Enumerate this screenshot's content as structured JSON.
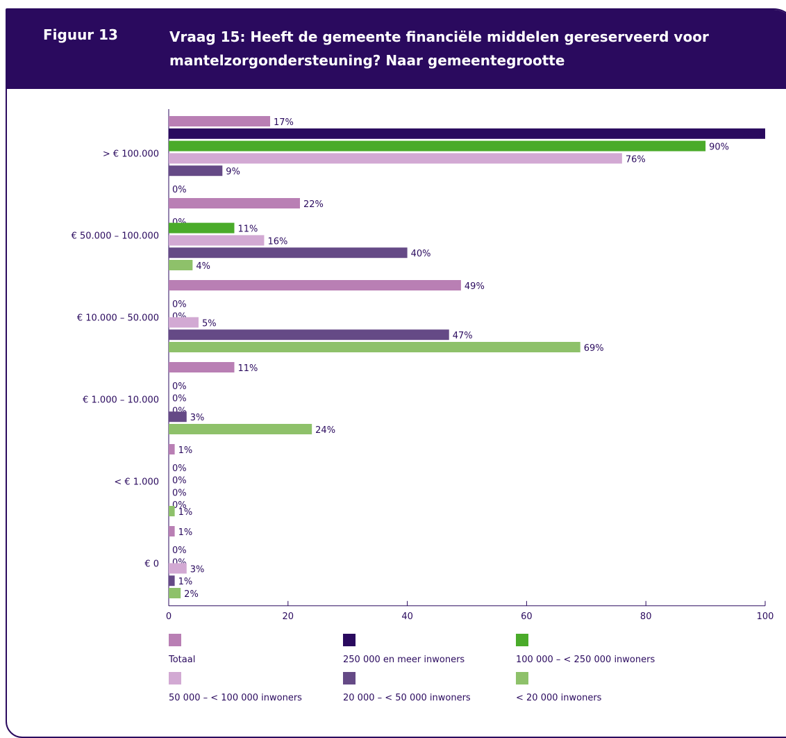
{
  "figure": {
    "label": "Figuur 13",
    "title": "Vraag 15: Heeft de gemeente financiële middelen gereserveerd voor mantelzorgondersteuning? Naar gemeentegrootte"
  },
  "chart_data": {
    "type": "bar",
    "orientation": "horizontal",
    "categories": [
      "> € 100.000",
      "€ 50.000 – 100.000",
      "€ 10.000 – 50.000",
      "€ 1.000 – 10.000",
      "< € 1.000",
      "€ 0"
    ],
    "series": [
      {
        "name": "Totaal",
        "color": "#b97fb4",
        "values": [
          17,
          22,
          49,
          11,
          1,
          1
        ]
      },
      {
        "name": "250 000 en meer inwoners",
        "color": "#2a0a5e",
        "values": [
          100,
          0,
          0,
          0,
          0,
          0
        ]
      },
      {
        "name": "100 000 – < 250 000 inwoners",
        "color": "#4aab2a",
        "values": [
          90,
          11,
          0,
          0,
          0,
          0
        ]
      },
      {
        "name": "50 000 – < 100 000 inwoners",
        "color": "#d2a9d3",
        "values": [
          76,
          16,
          5,
          0,
          0,
          3
        ]
      },
      {
        "name": "20 000 – < 50 000 inwoners",
        "color": "#654a86",
        "values": [
          9,
          40,
          47,
          3,
          0,
          1
        ]
      },
      {
        "name": "< 20 000 inwoners",
        "color": "#8ec16a",
        "values": [
          0,
          4,
          69,
          24,
          1,
          2
        ]
      }
    ],
    "value_suffix": "%",
    "xlim": [
      0,
      100
    ],
    "xticks": [
      0,
      20,
      40,
      60,
      80,
      100
    ],
    "legend_position": "bottom",
    "grid": false
  }
}
